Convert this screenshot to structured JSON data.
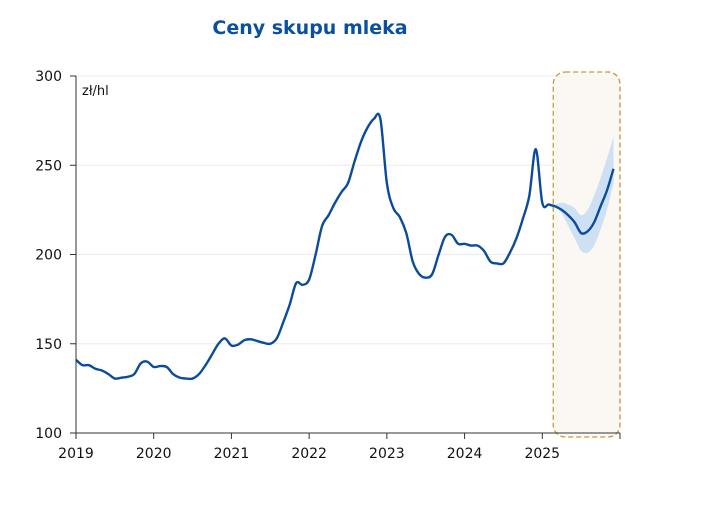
{
  "chart_data": {
    "type": "line",
    "title": "Ceny skupu mleka",
    "ylabel": "zł/hl",
    "xlabel": "",
    "ylim": [
      100,
      300
    ],
    "yticks": [
      "100",
      "150",
      "200",
      "250",
      "300"
    ],
    "xlim": [
      2019,
      2026
    ],
    "xticks": [
      "2019",
      "2020",
      "2021",
      "2022",
      "2023",
      "2024",
      "2025"
    ],
    "grid": "horizontal",
    "colors": {
      "line": "#0b4c9a",
      "band": "#c5ddf3",
      "forecast_box": "#c8963c",
      "forecast_fill": "#fbf8f3",
      "title": "#0b4fa0"
    },
    "series": [
      {
        "name": "actual",
        "start": "2019-01",
        "values": [
          141,
          138,
          138,
          136,
          135,
          133,
          130.5,
          131,
          131.5,
          133,
          139,
          140,
          137,
          137.5,
          137,
          133,
          131,
          130.5,
          130.5,
          133,
          138,
          144,
          150,
          153,
          149,
          149.5,
          152,
          152.5,
          151.5,
          150.5,
          150,
          153,
          162,
          172,
          184,
          183,
          186,
          200,
          216,
          222,
          229,
          235,
          240,
          252,
          263,
          271,
          276,
          276,
          240,
          226,
          221,
          212,
          196,
          189,
          187,
          189,
          200,
          210,
          211,
          206,
          206,
          205,
          205,
          202,
          196,
          195,
          195,
          201,
          209,
          220,
          233,
          259,
          229,
          228,
          227
        ]
      },
      {
        "name": "forecast",
        "start": "2025-03",
        "values": [
          227,
          225,
          222,
          218,
          212,
          213,
          218,
          227,
          236,
          248
        ],
        "lower": [
          227,
          223,
          216,
          209,
          202,
          201,
          205,
          214,
          225,
          240
        ],
        "upper": [
          228,
          229,
          228,
          226,
          222,
          225,
          233,
          243,
          254,
          266
        ]
      }
    ],
    "annotations": [
      "forecast period highlighted (Mar 2025 - Dec 2025)"
    ]
  }
}
